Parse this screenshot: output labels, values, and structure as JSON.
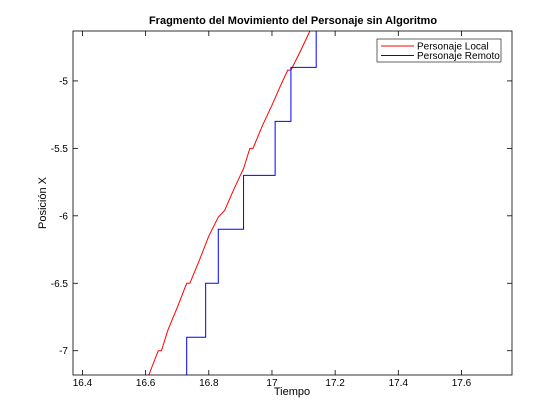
{
  "chart_data": {
    "type": "line",
    "title": "Fragmento del Movimiento del Personaje sin Algoritmo",
    "xlabel": "Tiempo",
    "ylabel": "Posición X",
    "xlim": [
      16.37,
      17.76
    ],
    "ylim": [
      -7.18,
      -4.63
    ],
    "x_ticks": [
      16.4,
      16.6,
      16.8,
      17,
      17.2,
      17.4,
      17.6
    ],
    "x_tick_labels": [
      "16.4",
      "16.6",
      "16.8",
      "17",
      "17.2",
      "17.4",
      "17.6"
    ],
    "y_ticks": [
      -7,
      -6.5,
      -6,
      -5.5,
      -5
    ],
    "y_tick_labels": [
      "-7",
      "-6.5",
      "-6",
      "-5.5",
      "-5"
    ],
    "grid": false,
    "legend_position": "top-right",
    "series": [
      {
        "name": "Personaje Local",
        "color": "#ff0000",
        "points": [
          [
            16.61,
            -7.18
          ],
          [
            16.64,
            -7.0
          ],
          [
            16.65,
            -7.0
          ],
          [
            16.67,
            -6.85
          ],
          [
            16.7,
            -6.68
          ],
          [
            16.73,
            -6.5
          ],
          [
            16.74,
            -6.5
          ],
          [
            16.77,
            -6.33
          ],
          [
            16.8,
            -6.15
          ],
          [
            16.83,
            -6.01
          ],
          [
            16.85,
            -5.96
          ],
          [
            16.88,
            -5.8
          ],
          [
            16.91,
            -5.65
          ],
          [
            16.93,
            -5.5
          ],
          [
            16.94,
            -5.5
          ],
          [
            16.97,
            -5.33
          ],
          [
            17.0,
            -5.18
          ],
          [
            17.03,
            -5.02
          ],
          [
            17.05,
            -4.92
          ],
          [
            17.06,
            -4.92
          ],
          [
            17.09,
            -4.78
          ],
          [
            17.12,
            -4.63
          ]
        ]
      },
      {
        "name": "Personaje Remoto",
        "color": "#0000ff",
        "points": [
          [
            16.73,
            -7.18
          ],
          [
            16.73,
            -6.9
          ],
          [
            16.78,
            -6.9
          ],
          [
            16.79,
            -6.9
          ],
          [
            16.79,
            -6.5
          ],
          [
            16.83,
            -6.5
          ],
          [
            16.83,
            -6.1
          ],
          [
            16.91,
            -6.1
          ],
          [
            16.91,
            -5.7
          ],
          [
            17.01,
            -5.7
          ],
          [
            17.01,
            -5.3
          ],
          [
            17.06,
            -5.3
          ],
          [
            17.06,
            -4.9
          ],
          [
            17.14,
            -4.9
          ],
          [
            17.14,
            -4.63
          ]
        ]
      }
    ]
  }
}
